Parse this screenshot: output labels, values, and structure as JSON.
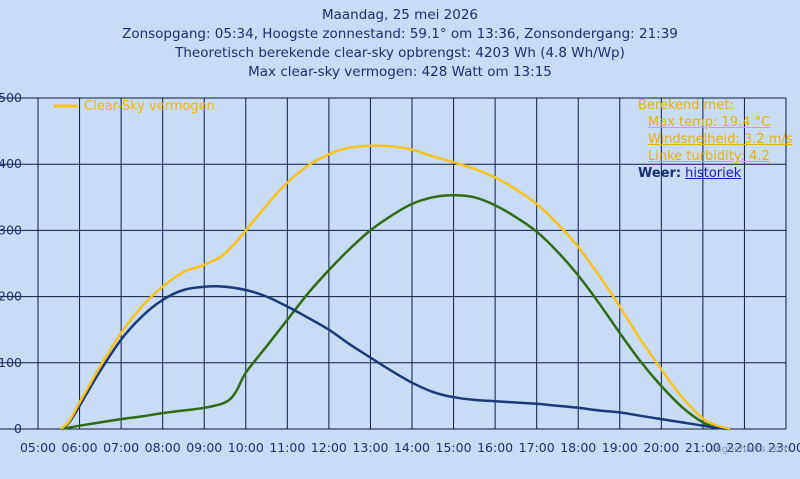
{
  "header": {
    "line1": "Maandag, 25 mei 2026",
    "line2": "Zonsopgang: 05:34, Hoogste zonnestand: 59.1° om 13:36, Zonsondergang: 21:39",
    "line3": "Theoretisch berekende clear-sky opbrengst: 4203 Wh (4.8 Wh/Wp)",
    "line4": "Max clear-sky vermogen: 428 Watt om 13:15"
  },
  "info": {
    "heading": "Berekend met:",
    "max_temp": "Max temp: 19.4 °C",
    "windsnelheid": "Windsnelheid: 3.2 m/s",
    "linke": "Linke turbidity: 4.2",
    "weer_label": "Weer:",
    "weer_link": "historiek"
  },
  "credit": "Highcharts.com",
  "colors": {
    "clear_sky": "#f7c21c",
    "series_blue": "#1a3a7a",
    "series_green": "#2f6b12",
    "grid": "#0d1a44"
  },
  "chart_data": {
    "type": "line",
    "xlabel": "",
    "ylabel": "",
    "xlim": [
      5,
      23
    ],
    "ylim": [
      0,
      500
    ],
    "y_ticks": [
      "0",
      "100",
      "200",
      "300",
      "400",
      "500"
    ],
    "x_ticks": [
      "05:00",
      "06:00",
      "07:00",
      "08:00",
      "09:00",
      "10:00",
      "11:00",
      "12:00",
      "13:00",
      "14:00",
      "15:00",
      "16:00",
      "17:00",
      "18:00",
      "19:00",
      "20:00",
      "21:00",
      "22:00",
      "23:00"
    ],
    "legend": "top-left",
    "series": [
      {
        "name": "Clear-Sky vermogen",
        "color": "#f7c21c",
        "x": [
          5.55,
          5.75,
          6.0,
          6.5,
          7.0,
          7.5,
          8.0,
          8.5,
          9.0,
          9.5,
          10.0,
          10.5,
          11.0,
          11.5,
          12.0,
          12.5,
          13.0,
          13.25,
          13.5,
          14.0,
          14.5,
          15.0,
          15.5,
          16.0,
          16.5,
          17.0,
          17.5,
          18.0,
          18.5,
          19.0,
          19.5,
          20.0,
          20.5,
          21.0,
          21.3,
          21.65
        ],
        "y": [
          0,
          12,
          40,
          95,
          145,
          185,
          215,
          237,
          248,
          265,
          300,
          338,
          372,
          398,
          415,
          425,
          428,
          428,
          427,
          422,
          412,
          403,
          393,
          380,
          362,
          340,
          310,
          275,
          232,
          185,
          135,
          90,
          48,
          16,
          6,
          0
        ]
      },
      {
        "name": "",
        "color": "#1a3a7a",
        "x": [
          5.55,
          5.75,
          6.0,
          6.5,
          7.0,
          7.5,
          8.0,
          8.5,
          9.0,
          9.5,
          10.0,
          10.5,
          11.0,
          11.5,
          12.0,
          12.5,
          13.0,
          13.5,
          14.0,
          14.5,
          15.0,
          15.5,
          16.0,
          16.5,
          17.0,
          17.5,
          18.0,
          18.5,
          19.0,
          19.5,
          20.0,
          20.5,
          21.0,
          21.3,
          21.65
        ],
        "y": [
          0,
          10,
          35,
          88,
          135,
          170,
          195,
          210,
          215,
          215,
          210,
          200,
          185,
          168,
          150,
          128,
          108,
          88,
          70,
          56,
          48,
          44,
          42,
          40,
          38,
          35,
          32,
          28,
          25,
          20,
          15,
          10,
          5,
          2,
          0
        ]
      },
      {
        "name": "",
        "color": "#2f6b12",
        "x": [
          5.55,
          6.0,
          6.5,
          7.0,
          7.5,
          8.0,
          8.5,
          9.0,
          9.5,
          9.75,
          10.0,
          10.5,
          11.0,
          11.5,
          12.0,
          12.5,
          13.0,
          13.5,
          14.0,
          14.5,
          15.0,
          15.5,
          16.0,
          16.5,
          17.0,
          17.5,
          18.0,
          18.5,
          19.0,
          19.5,
          20.0,
          20.5,
          21.0,
          21.3,
          21.65
        ],
        "y": [
          0,
          5,
          10,
          15,
          19,
          24,
          28,
          32,
          40,
          55,
          85,
          125,
          165,
          205,
          240,
          272,
          300,
          322,
          340,
          350,
          353,
          350,
          338,
          320,
          298,
          268,
          232,
          190,
          145,
          102,
          65,
          33,
          10,
          4,
          0
        ]
      }
    ]
  }
}
